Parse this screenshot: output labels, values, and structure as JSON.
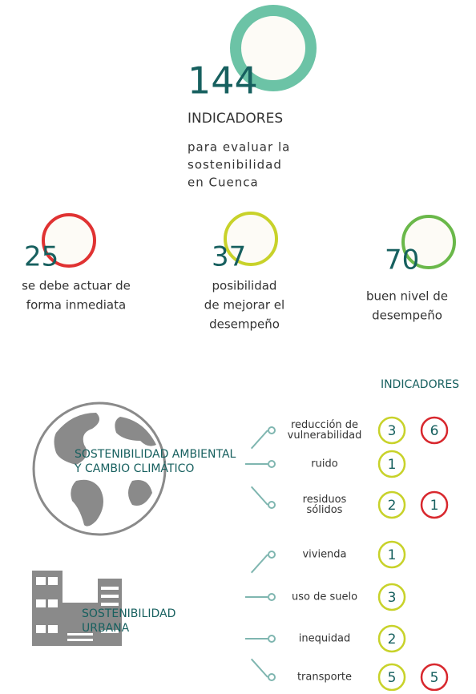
{
  "header": {
    "total": 144,
    "label": "INDICADORES",
    "description": [
      "para evaluar la",
      "sostenibilidad",
      "en Cuenca"
    ],
    "color": "#6cc3a6"
  },
  "stats": [
    {
      "value": 25,
      "label": [
        "se debe actuar de",
        "forma inmediata"
      ],
      "color": "#e03232"
    },
    {
      "value": 37,
      "label": [
        "posibilidad",
        "de mejorar el",
        "desempeño"
      ],
      "color": "#c8d22a"
    },
    {
      "value": 70,
      "label": [
        "buen nivel de",
        "desempeño"
      ],
      "color": "#6ab84a"
    }
  ],
  "indicators_title": "INDICADORES",
  "groups": [
    {
      "title": [
        "SOSTENIBILIDAD AMBIENTAL",
        "Y CAMBIO CLIMÁTICO"
      ],
      "items": [
        {
          "label": [
            "reducción de",
            "vulnerabilidad"
          ],
          "counts": [
            {
              "value": 3,
              "color": "#c8d22a"
            },
            {
              "value": 6,
              "color": "#d8282e"
            }
          ]
        },
        {
          "label": [
            "ruido"
          ],
          "counts": [
            {
              "value": 1,
              "color": "#c8d22a"
            }
          ]
        },
        {
          "label": [
            "residuos",
            "sólidos"
          ],
          "counts": [
            {
              "value": 2,
              "color": "#c8d22a"
            },
            {
              "value": 1,
              "color": "#d8282e"
            }
          ]
        }
      ]
    },
    {
      "title": [
        "SOSTENIBILIDAD",
        "URBANA"
      ],
      "items": [
        {
          "label": [
            "vivienda"
          ],
          "counts": [
            {
              "value": 1,
              "color": "#c8d22a"
            }
          ]
        },
        {
          "label": [
            "uso de suelo"
          ],
          "counts": [
            {
              "value": 3,
              "color": "#c8d22a"
            }
          ]
        },
        {
          "label": [
            "inequidad"
          ],
          "counts": [
            {
              "value": 2,
              "color": "#c8d22a"
            }
          ]
        },
        {
          "label": [
            "transporte"
          ],
          "counts": [
            {
              "value": 5,
              "color": "#c8d22a"
            },
            {
              "value": 5,
              "color": "#d8282e"
            }
          ]
        }
      ]
    }
  ]
}
